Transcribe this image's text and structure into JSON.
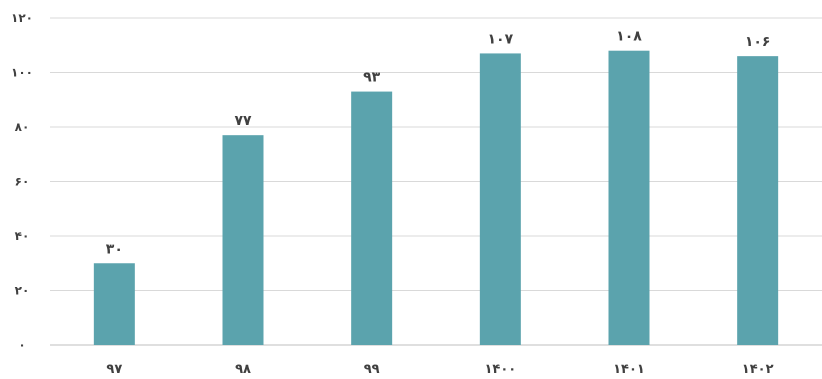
{
  "chart_data": {
    "type": "bar",
    "categories": [
      "۹۷",
      "۹۸",
      "۹۹",
      "۱۴۰۰",
      "۱۴۰۱",
      "۱۴۰۲"
    ],
    "values": [
      30,
      77,
      93,
      107,
      108,
      106
    ],
    "value_labels": [
      "۳۰",
      "۷۷",
      "۹۳",
      "۱۰۷",
      "۱۰۸",
      "۱۰۶"
    ],
    "yticks": [
      0,
      20,
      40,
      60,
      80,
      100,
      120
    ],
    "ytick_labels": [
      "۰",
      "۲۰",
      "۴۰",
      "۶۰",
      "۸۰",
      "۱۰۰",
      "۱۲۰"
    ],
    "ylim": [
      0,
      120
    ],
    "grid": true,
    "legend": "none",
    "title": "",
    "xlabel": "",
    "ylabel": "",
    "colors": {
      "bar": "#5ba3ad",
      "grid": "#d9d9d9",
      "text": "#404040"
    }
  }
}
